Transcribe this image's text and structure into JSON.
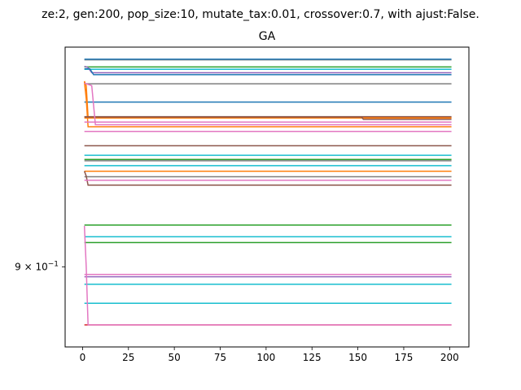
{
  "chart_data": {
    "type": "line",
    "suptitle": "ze:2, gen:200, pop_size:10, mutate_tax:0.01, crossover:0.7, with ajust:False.",
    "title": "GA",
    "xlabel": "",
    "ylabel": "",
    "xlim": [
      -9.5,
      210.5
    ],
    "ylim": [
      0.848,
      1.06
    ],
    "yscale": "log",
    "grid": false,
    "legend": "none",
    "xticks": [
      0,
      25,
      50,
      75,
      100,
      125,
      150,
      175,
      200
    ],
    "xtick_labels": [
      "0",
      "25",
      "50",
      "75",
      "100",
      "125",
      "150",
      "175",
      "200"
    ],
    "yticks": [
      0.9
    ],
    "ytick_labels": [
      "9 × 10⁻¹"
    ],
    "series": [
      {
        "color": "#7f7f7f",
        "x": [
          1,
          201
        ],
        "y": [
          1.05,
          1.05
        ]
      },
      {
        "color": "#1f77b4",
        "x": [
          1,
          201
        ],
        "y": [
          1.0505,
          1.0505
        ]
      },
      {
        "color": "#2ca02c",
        "x": [
          1,
          201
        ],
        "y": [
          1.0445,
          1.0445
        ]
      },
      {
        "color": "#17becf",
        "x": [
          1,
          201
        ],
        "y": [
          1.0427,
          1.0427
        ]
      },
      {
        "color": "#9467bd",
        "x": [
          1,
          3,
          5,
          201
        ],
        "y": [
          1.045,
          1.044,
          1.04,
          1.04
        ]
      },
      {
        "color": "#1f77b4",
        "x": [
          1,
          4,
          6,
          201
        ],
        "y": [
          1.043,
          1.043,
          1.0385,
          1.0385
        ]
      },
      {
        "color": "#7f7f7f",
        "x": [
          1,
          201
        ],
        "y": [
          1.0315,
          1.0315
        ]
      },
      {
        "color": "#1f77b4",
        "x": [
          1,
          201
        ],
        "y": [
          1.0175,
          1.0175
        ]
      },
      {
        "color": "#ff7f0e",
        "x": [
          1,
          2,
          3,
          201
        ],
        "y": [
          1.0335,
          1.03,
          1.006,
          1.006
        ]
      },
      {
        "color": "#ff7f0e",
        "x": [
          1,
          2,
          3,
          4,
          201
        ],
        "y": [
          1.033,
          1.02,
          0.999,
          0.999,
          0.999
        ]
      },
      {
        "color": "#8c564b",
        "x": [
          1,
          152,
          153,
          201
        ],
        "y": [
          1.0065,
          1.0065,
          1.0065,
          1.0065
        ]
      },
      {
        "color": "#ff7f0e",
        "x": [
          1,
          201
        ],
        "y": [
          1.0055,
          1.0055
        ]
      },
      {
        "color": "#8c564b",
        "x": [
          1,
          152,
          153,
          201
        ],
        "y": [
          1.0063,
          1.0063,
          1.0045,
          1.0045
        ]
      },
      {
        "color": "#e377c2",
        "x": [
          1,
          201
        ],
        "y": [
          1.0025,
          1.0025
        ]
      },
      {
        "color": "#e377c2",
        "x": [
          1,
          5,
          7,
          201
        ],
        "y": [
          1.032,
          1.03,
          1.0005,
          1.0005
        ]
      },
      {
        "color": "#e377c2",
        "x": [
          1,
          201
        ],
        "y": [
          0.9955,
          0.9955
        ]
      },
      {
        "color": "#8c564b",
        "x": [
          1,
          201
        ],
        "y": [
          0.985,
          0.985
        ]
      },
      {
        "color": "#17becf",
        "x": [
          1,
          201
        ],
        "y": [
          0.978,
          0.978
        ]
      },
      {
        "color": "#2ca02c",
        "x": [
          1,
          201
        ],
        "y": [
          0.975,
          0.975
        ]
      },
      {
        "color": "#7f7f7f",
        "x": [
          1,
          201
        ],
        "y": [
          0.974,
          0.974
        ]
      },
      {
        "color": "#17becf",
        "x": [
          1,
          201
        ],
        "y": [
          0.9705,
          0.9705
        ]
      },
      {
        "color": "#ff7f0e",
        "x": [
          1,
          201
        ],
        "y": [
          0.9665,
          0.9665
        ]
      },
      {
        "color": "#7f7f7f",
        "x": [
          1,
          201
        ],
        "y": [
          0.9625,
          0.9625
        ]
      },
      {
        "color": "#8c564b",
        "x": [
          1,
          2,
          3,
          201
        ],
        "y": [
          0.9665,
          0.963,
          0.9565,
          0.9565
        ]
      },
      {
        "color": "#e377c2",
        "x": [
          1,
          201
        ],
        "y": [
          0.96,
          0.96
        ]
      },
      {
        "color": "#2ca02c",
        "x": [
          1,
          201
        ],
        "y": [
          0.9285,
          0.9285
        ]
      },
      {
        "color": "#17becf",
        "x": [
          1,
          201
        ],
        "y": [
          0.9205,
          0.9205
        ]
      },
      {
        "color": "#2ca02c",
        "x": [
          1,
          201
        ],
        "y": [
          0.9165,
          0.9165
        ]
      },
      {
        "color": "#e377c2",
        "x": [
          1,
          201
        ],
        "y": [
          0.895,
          0.895
        ]
      },
      {
        "color": "#9467bd",
        "x": [
          1,
          201
        ],
        "y": [
          0.8935,
          0.8935
        ]
      },
      {
        "color": "#17becf",
        "x": [
          1,
          201
        ],
        "y": [
          0.8885,
          0.8885
        ]
      },
      {
        "color": "#17becf",
        "x": [
          1,
          201
        ],
        "y": [
          0.876,
          0.876
        ]
      },
      {
        "color": "#d62728",
        "x": [
          1,
          201
        ],
        "y": [
          0.862,
          0.862
        ]
      },
      {
        "color": "#e377c2",
        "x": [
          1,
          2,
          3,
          201
        ],
        "y": [
          0.928,
          0.9,
          0.862,
          0.862
        ]
      }
    ]
  }
}
